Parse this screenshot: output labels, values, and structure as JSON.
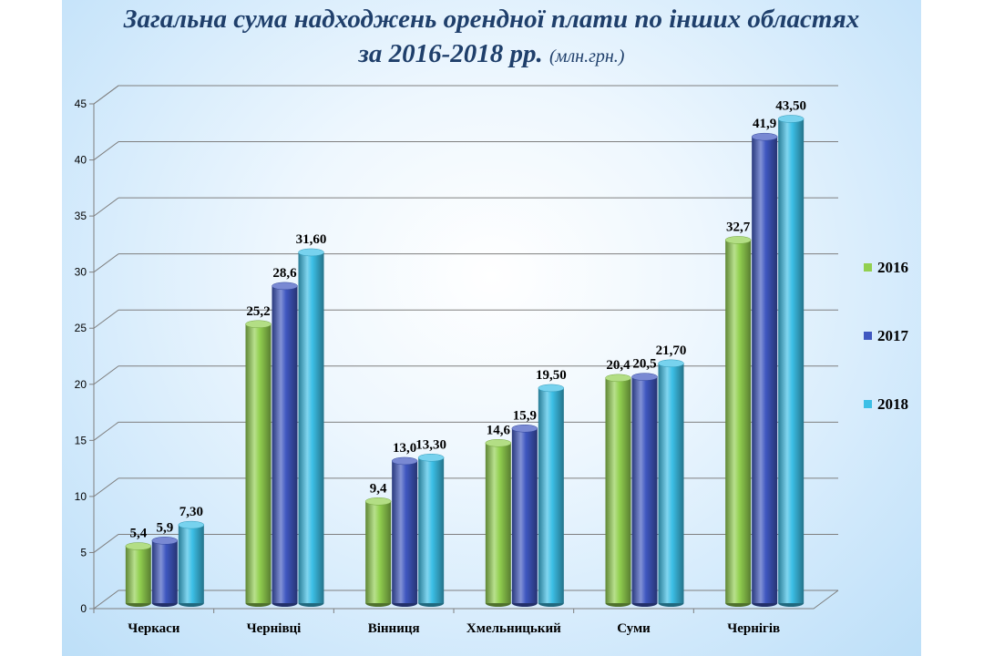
{
  "title_line1": "Загальна сума надходжень орендної плати по інших областях",
  "title_line2": "за 2016-2018 рр.",
  "title_units": "(млн.грн.)",
  "colors": {
    "2016": "#92d050",
    "2017": "#3f57c0",
    "2018": "#3cbfe6"
  },
  "chart_data": {
    "type": "bar",
    "categories": [
      "Черкаси",
      "Чернівці",
      "Вінниця",
      "Хмельницький",
      "Суми",
      "Чернігів"
    ],
    "series": [
      {
        "name": "2016",
        "values": [
          5.4,
          25.2,
          9.4,
          14.6,
          20.4,
          32.7
        ],
        "labels": [
          "5,4",
          "25,2",
          "9,4",
          "14,6",
          "20,4",
          "32,7"
        ]
      },
      {
        "name": "2017",
        "values": [
          5.9,
          28.6,
          13.0,
          15.9,
          20.5,
          41.9
        ],
        "labels": [
          "5,9",
          "28,6",
          "13,0",
          "15,9",
          "20,5",
          "41,9"
        ]
      },
      {
        "name": "2018",
        "values": [
          7.3,
          31.6,
          13.3,
          19.5,
          21.7,
          43.5
        ],
        "labels": [
          "7,30",
          "31,60",
          "13,30",
          "19,50",
          "21,70",
          "43,50"
        ]
      }
    ],
    "ylim": [
      0,
      45
    ],
    "yticks": [
      0,
      5,
      10,
      15,
      20,
      25,
      30,
      35,
      40,
      45
    ],
    "grid": true,
    "legend": "right",
    "xlabel": "",
    "ylabel": ""
  }
}
